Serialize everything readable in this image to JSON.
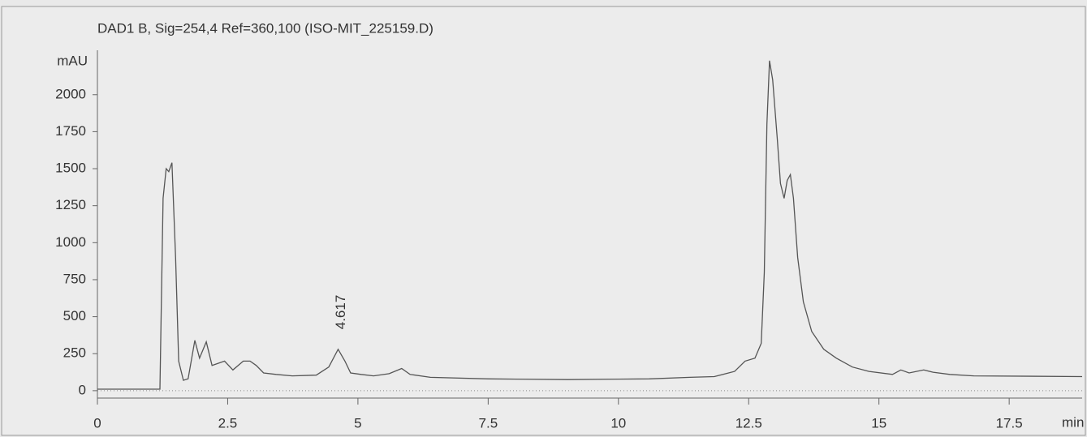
{
  "chart_data": {
    "type": "line",
    "title": "DAD1 B, Sig=254,4 Ref=360,100 (ISO-MIT_225159.D)",
    "y_axis_label": "mAU",
    "x_axis_label": "min",
    "xlim": [
      0,
      18.9
    ],
    "ylim": [
      -50,
      2300
    ],
    "xticks": [
      0,
      2.5,
      5,
      7.5,
      10,
      12.5,
      15,
      17.5
    ],
    "yticks": [
      0,
      250,
      500,
      750,
      1000,
      1250,
      1500,
      1750,
      2000
    ],
    "color": "#555555",
    "baseline_dotted": true,
    "peak_labels": [
      4.617
    ],
    "x": [
      0,
      1.2,
      1.26,
      1.32,
      1.37,
      1.43,
      1.5,
      1.56,
      1.65,
      1.74,
      1.87,
      1.96,
      2.09,
      2.2,
      2.44,
      2.6,
      2.8,
      2.93,
      3.05,
      3.19,
      3.43,
      3.74,
      4.2,
      4.44,
      4.62,
      4.75,
      4.86,
      5.06,
      5.3,
      5.6,
      5.84,
      6.0,
      6.39,
      7.5,
      9.03,
      10.59,
      11.37,
      11.84,
      12.23,
      12.43,
      12.62,
      12.74,
      12.8,
      12.85,
      12.9,
      12.96,
      13.05,
      13.11,
      13.18,
      13.24,
      13.3,
      13.36,
      13.44,
      13.55,
      13.71,
      13.94,
      14.18,
      14.49,
      14.81,
      15.26,
      15.42,
      15.58,
      15.86,
      16.04,
      16.36,
      16.82,
      18.9
    ],
    "values": [
      10,
      10,
      1300,
      1500,
      1480,
      1540,
      900,
      200,
      70,
      80,
      340,
      220,
      330,
      170,
      200,
      140,
      200,
      200,
      170,
      120,
      110,
      100,
      105,
      160,
      280,
      200,
      120,
      110,
      100,
      115,
      150,
      110,
      90,
      80,
      75,
      80,
      90,
      95,
      130,
      200,
      220,
      320,
      800,
      1800,
      2230,
      2100,
      1700,
      1400,
      1300,
      1420,
      1460,
      1300,
      900,
      600,
      400,
      280,
      220,
      160,
      130,
      110,
      140,
      120,
      140,
      125,
      110,
      100,
      95
    ]
  }
}
